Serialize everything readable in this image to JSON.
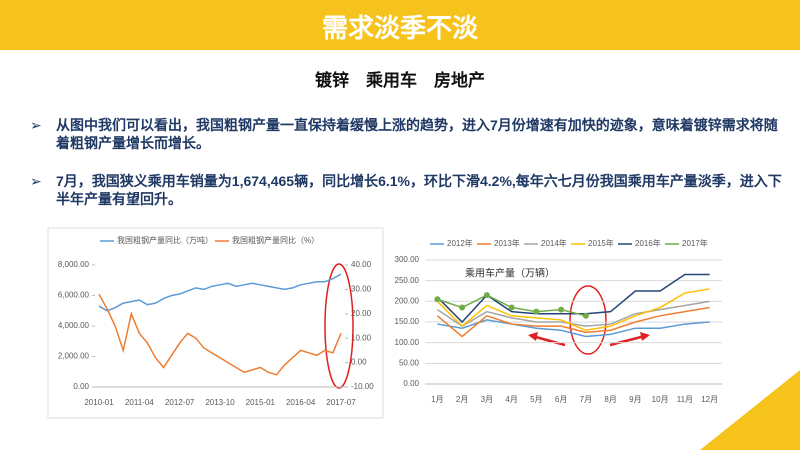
{
  "header": {
    "title": "需求淡季不淡",
    "subtitle": "镀锌　乘用车　房地产"
  },
  "bullets": [
    "从图中我们可以看出，我国粗钢产量一直保持着缓慢上涨的趋势，进入7月份增速有加快的迹象，意味着镀锌需求将随着粗钢产量增长而增长。",
    "7月，我国狭义乘用车销量为1,674,465辆，同比增长6.1%，环比下滑4.2%,每年六七月份我国乘用车产量淡季，进入下半年产量有望回升。"
  ],
  "chart_data": [
    {
      "type": "line",
      "categories": [
        "2010-01",
        null,
        null,
        null,
        null,
        "2011-04",
        null,
        null,
        null,
        null,
        "2012-07",
        null,
        null,
        null,
        null,
        "2013-10",
        null,
        null,
        null,
        null,
        "2015-01",
        null,
        null,
        null,
        null,
        "2016-04",
        null,
        null,
        null,
        null,
        "2017-07"
      ],
      "series": [
        {
          "name": "我国粗钢产量同比（万吨）",
          "color": "#5b9bd5",
          "values": [
            5300,
            5000,
            5200,
            5500,
            5600,
            5700,
            5400,
            5500,
            5800,
            6000,
            6100,
            6300,
            6500,
            6400,
            6600,
            6700,
            6800,
            6600,
            6700,
            6800,
            6700,
            6600,
            6500,
            6400,
            6500,
            6700,
            6800,
            6900,
            6900,
            7100,
            7400
          ]
        },
        {
          "name": "我国粗钢产量同比（%）",
          "color": "#ed7d31",
          "axis": "y2",
          "values": [
            28,
            22,
            15,
            5,
            20,
            12,
            8,
            2,
            -2,
            3,
            8,
            12,
            10,
            6,
            4,
            2,
            0,
            -2,
            -4,
            -3,
            -2,
            -4,
            -5,
            -1,
            2,
            5,
            4,
            3,
            5,
            4,
            12
          ]
        }
      ],
      "ylim": [
        0,
        8000
      ],
      "yticks": [
        {
          "value": 0,
          "label": "0.00"
        },
        {
          "value": 2000,
          "label": "2,000.00"
        },
        {
          "value": 4000,
          "label": "4,000.00"
        },
        {
          "value": 6000,
          "label": "6,000.00"
        },
        {
          "value": 8000,
          "label": "8,000.00"
        }
      ],
      "y2lim": [
        -10,
        40
      ],
      "y2ticks": [
        {
          "value": -10,
          "label": "-10.00"
        },
        {
          "value": 0,
          "label": "0.00"
        },
        {
          "value": 10,
          "label": "10.00"
        },
        {
          "value": 20,
          "label": "20.00"
        },
        {
          "value": 30,
          "label": "30.00"
        },
        {
          "value": 40,
          "label": "40.00"
        }
      ],
      "grid": false
    },
    {
      "type": "line",
      "title": "乘用车产量（万辆）",
      "categories": [
        "1月",
        "2月",
        "3月",
        "4月",
        "5月",
        "6月",
        "7月",
        "8月",
        "9月",
        "10月",
        "11月",
        "12月"
      ],
      "series": [
        {
          "name": "2012年",
          "color": "#5b9bd5",
          "values": [
            145,
            135,
            155,
            145,
            135,
            130,
            115,
            120,
            135,
            135,
            145,
            150
          ]
        },
        {
          "name": "2013年",
          "color": "#ed7d31",
          "values": [
            165,
            115,
            165,
            145,
            140,
            140,
            125,
            130,
            150,
            165,
            175,
            185
          ]
        },
        {
          "name": "2014年",
          "color": "#a5a5a5",
          "values": [
            180,
            140,
            175,
            160,
            150,
            150,
            140,
            145,
            170,
            180,
            190,
            200
          ]
        },
        {
          "name": "2015年",
          "color": "#ffc000",
          "values": [
            200,
            140,
            190,
            165,
            160,
            155,
            130,
            140,
            165,
            185,
            220,
            230
          ]
        },
        {
          "name": "2016年",
          "color": "#264478",
          "values": [
            210,
            150,
            215,
            175,
            170,
            170,
            170,
            175,
            225,
            225,
            265,
            265
          ]
        },
        {
          "name": "2017年",
          "color": "#70ad47",
          "markers": true,
          "values": [
            205,
            185,
            215,
            185,
            175,
            180,
            165,
            null,
            null,
            null,
            null,
            null
          ]
        }
      ],
      "ylim": [
        0,
        300
      ],
      "yticks": [
        {
          "value": 0,
          "label": "0.00"
        },
        {
          "value": 50,
          "label": "50.00"
        },
        {
          "value": 100,
          "label": "100.00"
        },
        {
          "value": 150,
          "label": "150.00"
        },
        {
          "value": 200,
          "label": "200.00"
        },
        {
          "value": 250,
          "label": "250.00"
        },
        {
          "value": 300,
          "label": "300.00"
        }
      ],
      "grid": true
    }
  ]
}
